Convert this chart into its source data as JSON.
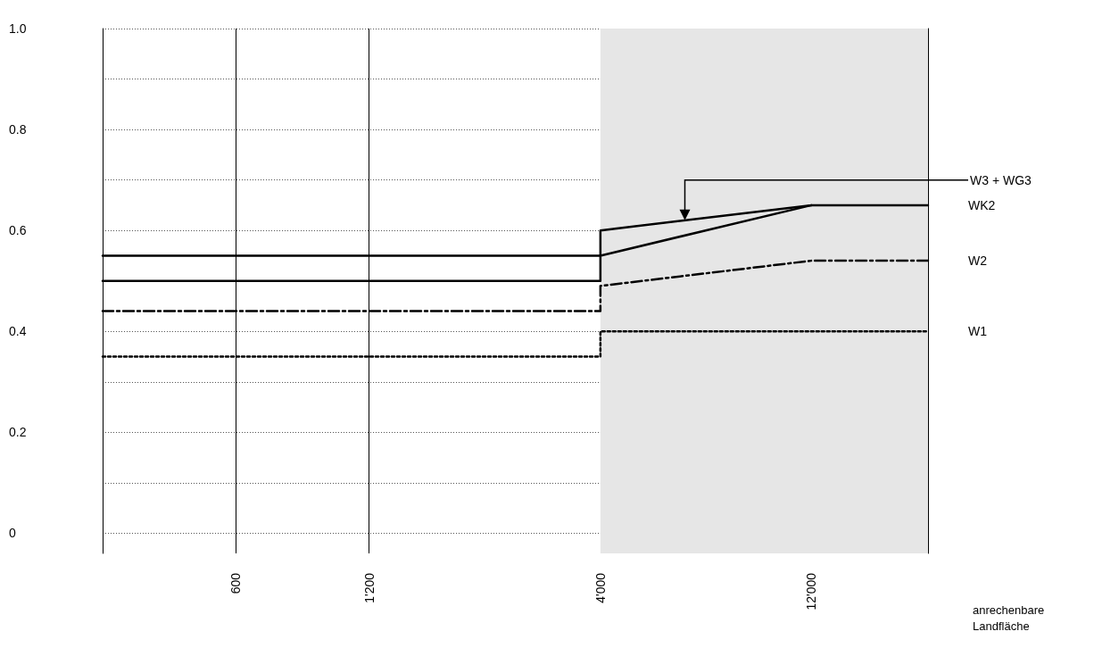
{
  "chart_data": {
    "type": "line",
    "xlabel": "anrechenbare Landfläche",
    "log": "x",
    "xlim": [
      300,
      22000
    ],
    "xticks": [
      600,
      {
        "value": 1200,
        "label": "1'200"
      },
      {
        "value": 4000,
        "label": "4'000"
      },
      {
        "value": 12000,
        "label": "12'000"
      }
    ],
    "ylim": [
      -0.04,
      1.0
    ],
    "yticks": [
      0,
      {
        "value": 0.1,
        "label": null
      },
      0.2,
      {
        "value": 0.3,
        "label": null
      },
      0.4,
      {
        "value": 0.5,
        "label": null
      },
      0.6,
      {
        "value": 0.7,
        "label": null
      },
      0.8,
      {
        "value": 0.9,
        "label": null
      },
      {
        "value": 1.0,
        "label": "1.0"
      }
    ],
    "grid": true,
    "legend": false,
    "marker": "none",
    "series": [
      {
        "name": "W3 + WG3",
        "color": "#000000",
        "line_style": "solid",
        "x": [
          300,
          4000,
          4000,
          12000
        ],
        "values": [
          0.55,
          0.55,
          0.6,
          0.65
        ]
      },
      {
        "name": "WK2",
        "color": "#000000",
        "line_style": "solid",
        "x": [
          300,
          4000,
          4000,
          12000,
          22000
        ],
        "values": [
          0.5,
          0.5,
          0.55,
          0.65,
          0.65
        ]
      },
      {
        "name": "W2",
        "color": "#000000",
        "line_style": "dashed",
        "x": [
          300,
          4000,
          4000,
          12000,
          22000
        ],
        "values": [
          0.44,
          0.44,
          0.49,
          0.54,
          0.54
        ]
      },
      {
        "name": "W1",
        "color": "#000000",
        "line_style": "dotted",
        "x": [
          300,
          4000,
          4000,
          22000
        ],
        "values": [
          0.35,
          0.35,
          0.4,
          0.4
        ]
      }
    ],
    "bands": [
      {
        "axis": "x",
        "from": 4000,
        "to": 22000,
        "color": "#e6e6e6"
      }
    ]
  }
}
